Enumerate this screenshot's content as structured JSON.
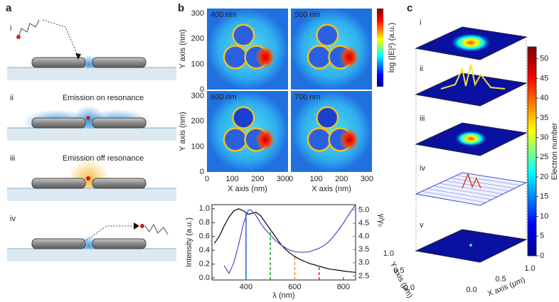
{
  "panel_a": {
    "label": "a",
    "rows": [
      {
        "numeral": "i"
      },
      {
        "numeral": "ii",
        "caption": "Emission on resonance"
      },
      {
        "numeral": "iii",
        "caption": "Emission off resonance"
      },
      {
        "numeral": "iv"
      }
    ]
  },
  "panel_b": {
    "label": "b",
    "maps": [
      {
        "label": "400 nm",
        "color": "#7f9cc4"
      },
      {
        "label": "500 nm",
        "color": "#2ca02c"
      },
      {
        "label": "600 nm",
        "color": "#e0872a"
      },
      {
        "label": "700 nm",
        "color": "#d0202a"
      }
    ],
    "xlabel": "X axis (nm)",
    "ylabel": "Y axis (nm)",
    "xlim": [
      0,
      320
    ],
    "ylim": [
      0,
      320
    ],
    "xticks": [
      0,
      100,
      200,
      300
    ],
    "yticks": [
      0,
      100,
      200,
      300
    ],
    "colorbar_label": "log (|E|²) (a.u.)"
  },
  "chart_data": {
    "type": "line",
    "xlabel": "λ (nm)",
    "ylabel": "Intensity (a.u.)",
    "y2label": "γ/γ₀",
    "x": [
      270,
      290,
      310,
      330,
      350,
      370,
      390,
      410,
      420,
      440,
      460,
      480,
      500,
      520,
      540,
      560,
      580,
      600,
      620,
      640,
      660,
      680,
      700,
      720,
      740,
      760,
      780,
      800,
      820,
      850
    ],
    "series": [
      {
        "color": "#000000",
        "values": [
          0.5,
          0.6,
          0.75,
          0.88,
          0.97,
          1.0,
          0.97,
          0.92,
          0.93,
          0.95,
          0.9,
          0.8,
          0.7,
          0.6,
          0.5,
          0.42,
          0.36,
          0.31,
          0.27,
          0.24,
          0.21,
          0.19,
          0.17,
          0.15,
          0.13,
          0.12,
          0.11,
          0.1,
          0.09,
          0.08
        ]
      },
      {
        "color": "#5a3fd0",
        "axis": "y2",
        "values": [
          null,
          null,
          2.9,
          2.6,
          3.0,
          3.7,
          4.5,
          5.0,
          5.0,
          4.8,
          4.5,
          4.25,
          4.05,
          3.85,
          3.7,
          3.58,
          3.48,
          3.42,
          3.4,
          3.4,
          3.42,
          3.48,
          3.55,
          3.65,
          3.8,
          4.0,
          4.25,
          4.5,
          4.8,
          5.2
        ]
      }
    ],
    "xlim": [
      260,
      850
    ],
    "xticks": [
      400,
      600,
      800
    ],
    "ylim": [
      -0.03,
      1.06
    ],
    "yticks": [
      {
        "value": 0,
        "label": "0.0"
      },
      0.2,
      0.4,
      0.6,
      0.8,
      {
        "value": 1,
        "label": "1.0"
      }
    ],
    "y2lim": [
      2.35,
      5.2
    ],
    "y2ticks": [
      2.5,
      {
        "value": 3,
        "label": "3.0"
      },
      3.5,
      {
        "value": 4,
        "label": "4.0"
      },
      4.5,
      {
        "value": 5,
        "label": "5.0"
      }
    ],
    "y2color": "#3a8fd0",
    "markers": {
      "values": [
        400,
        500,
        600,
        700
      ],
      "colors": [
        "#1f6fd0",
        "#2ca02c",
        "#f0962a",
        "#d62728"
      ],
      "dashed": [
        false,
        true,
        true,
        true
      ]
    }
  },
  "panel_c": {
    "label": "c",
    "planes": [
      "i",
      "ii",
      "iii",
      "iv",
      "v"
    ],
    "colorbar_label": "Electron number",
    "clim": [
      0,
      53
    ],
    "cticks": [
      0,
      5,
      10,
      15,
      20,
      25,
      30,
      35,
      40,
      45,
      50
    ],
    "xlabel": "X axis (μm)",
    "ylabel": "Y axis (μm)",
    "xticks": [
      {
        "value": 0,
        "label": "0.0"
      },
      0.5,
      {
        "value": 1,
        "label": "1.0"
      }
    ],
    "yticks": [
      {
        "value": 0,
        "label": "0.0"
      },
      0.5,
      {
        "value": 1,
        "label": "1.0"
      }
    ]
  }
}
